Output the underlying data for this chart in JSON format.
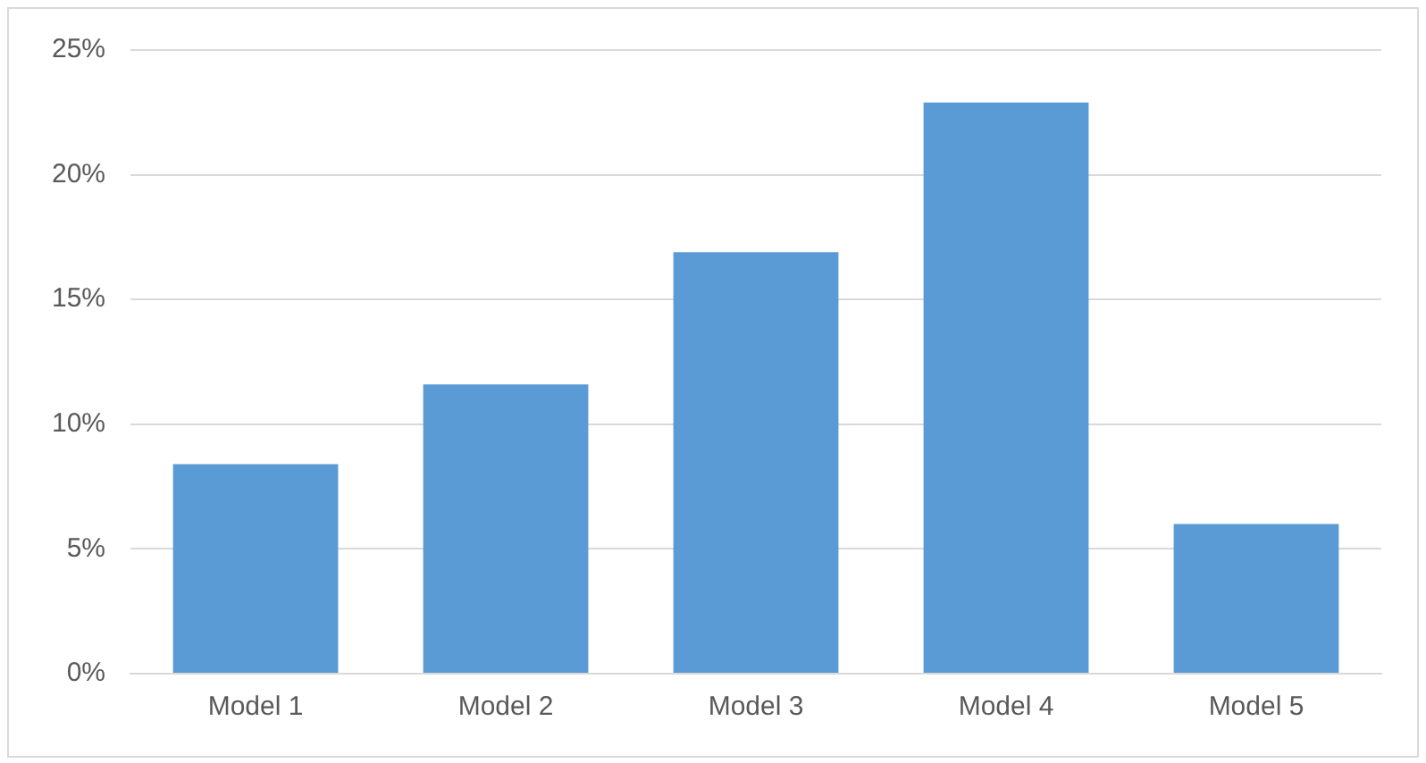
{
  "chart_data": {
    "type": "bar",
    "categories": [
      "Model 1",
      "Model 2",
      "Model 3",
      "Model 4",
      "Model 5"
    ],
    "values": [
      8.4,
      11.6,
      16.9,
      22.9,
      6.0
    ],
    "color": "#5b9bd5",
    "ylim": [
      0,
      25
    ],
    "yticks": [
      {
        "value": 0,
        "label": "0%"
      },
      {
        "value": 5,
        "label": "5%"
      },
      {
        "value": 10,
        "label": "10%"
      },
      {
        "value": 15,
        "label": "15%"
      },
      {
        "value": 20,
        "label": "20%"
      },
      {
        "value": 25,
        "label": "25%"
      }
    ],
    "grid": "y",
    "legend": false
  }
}
